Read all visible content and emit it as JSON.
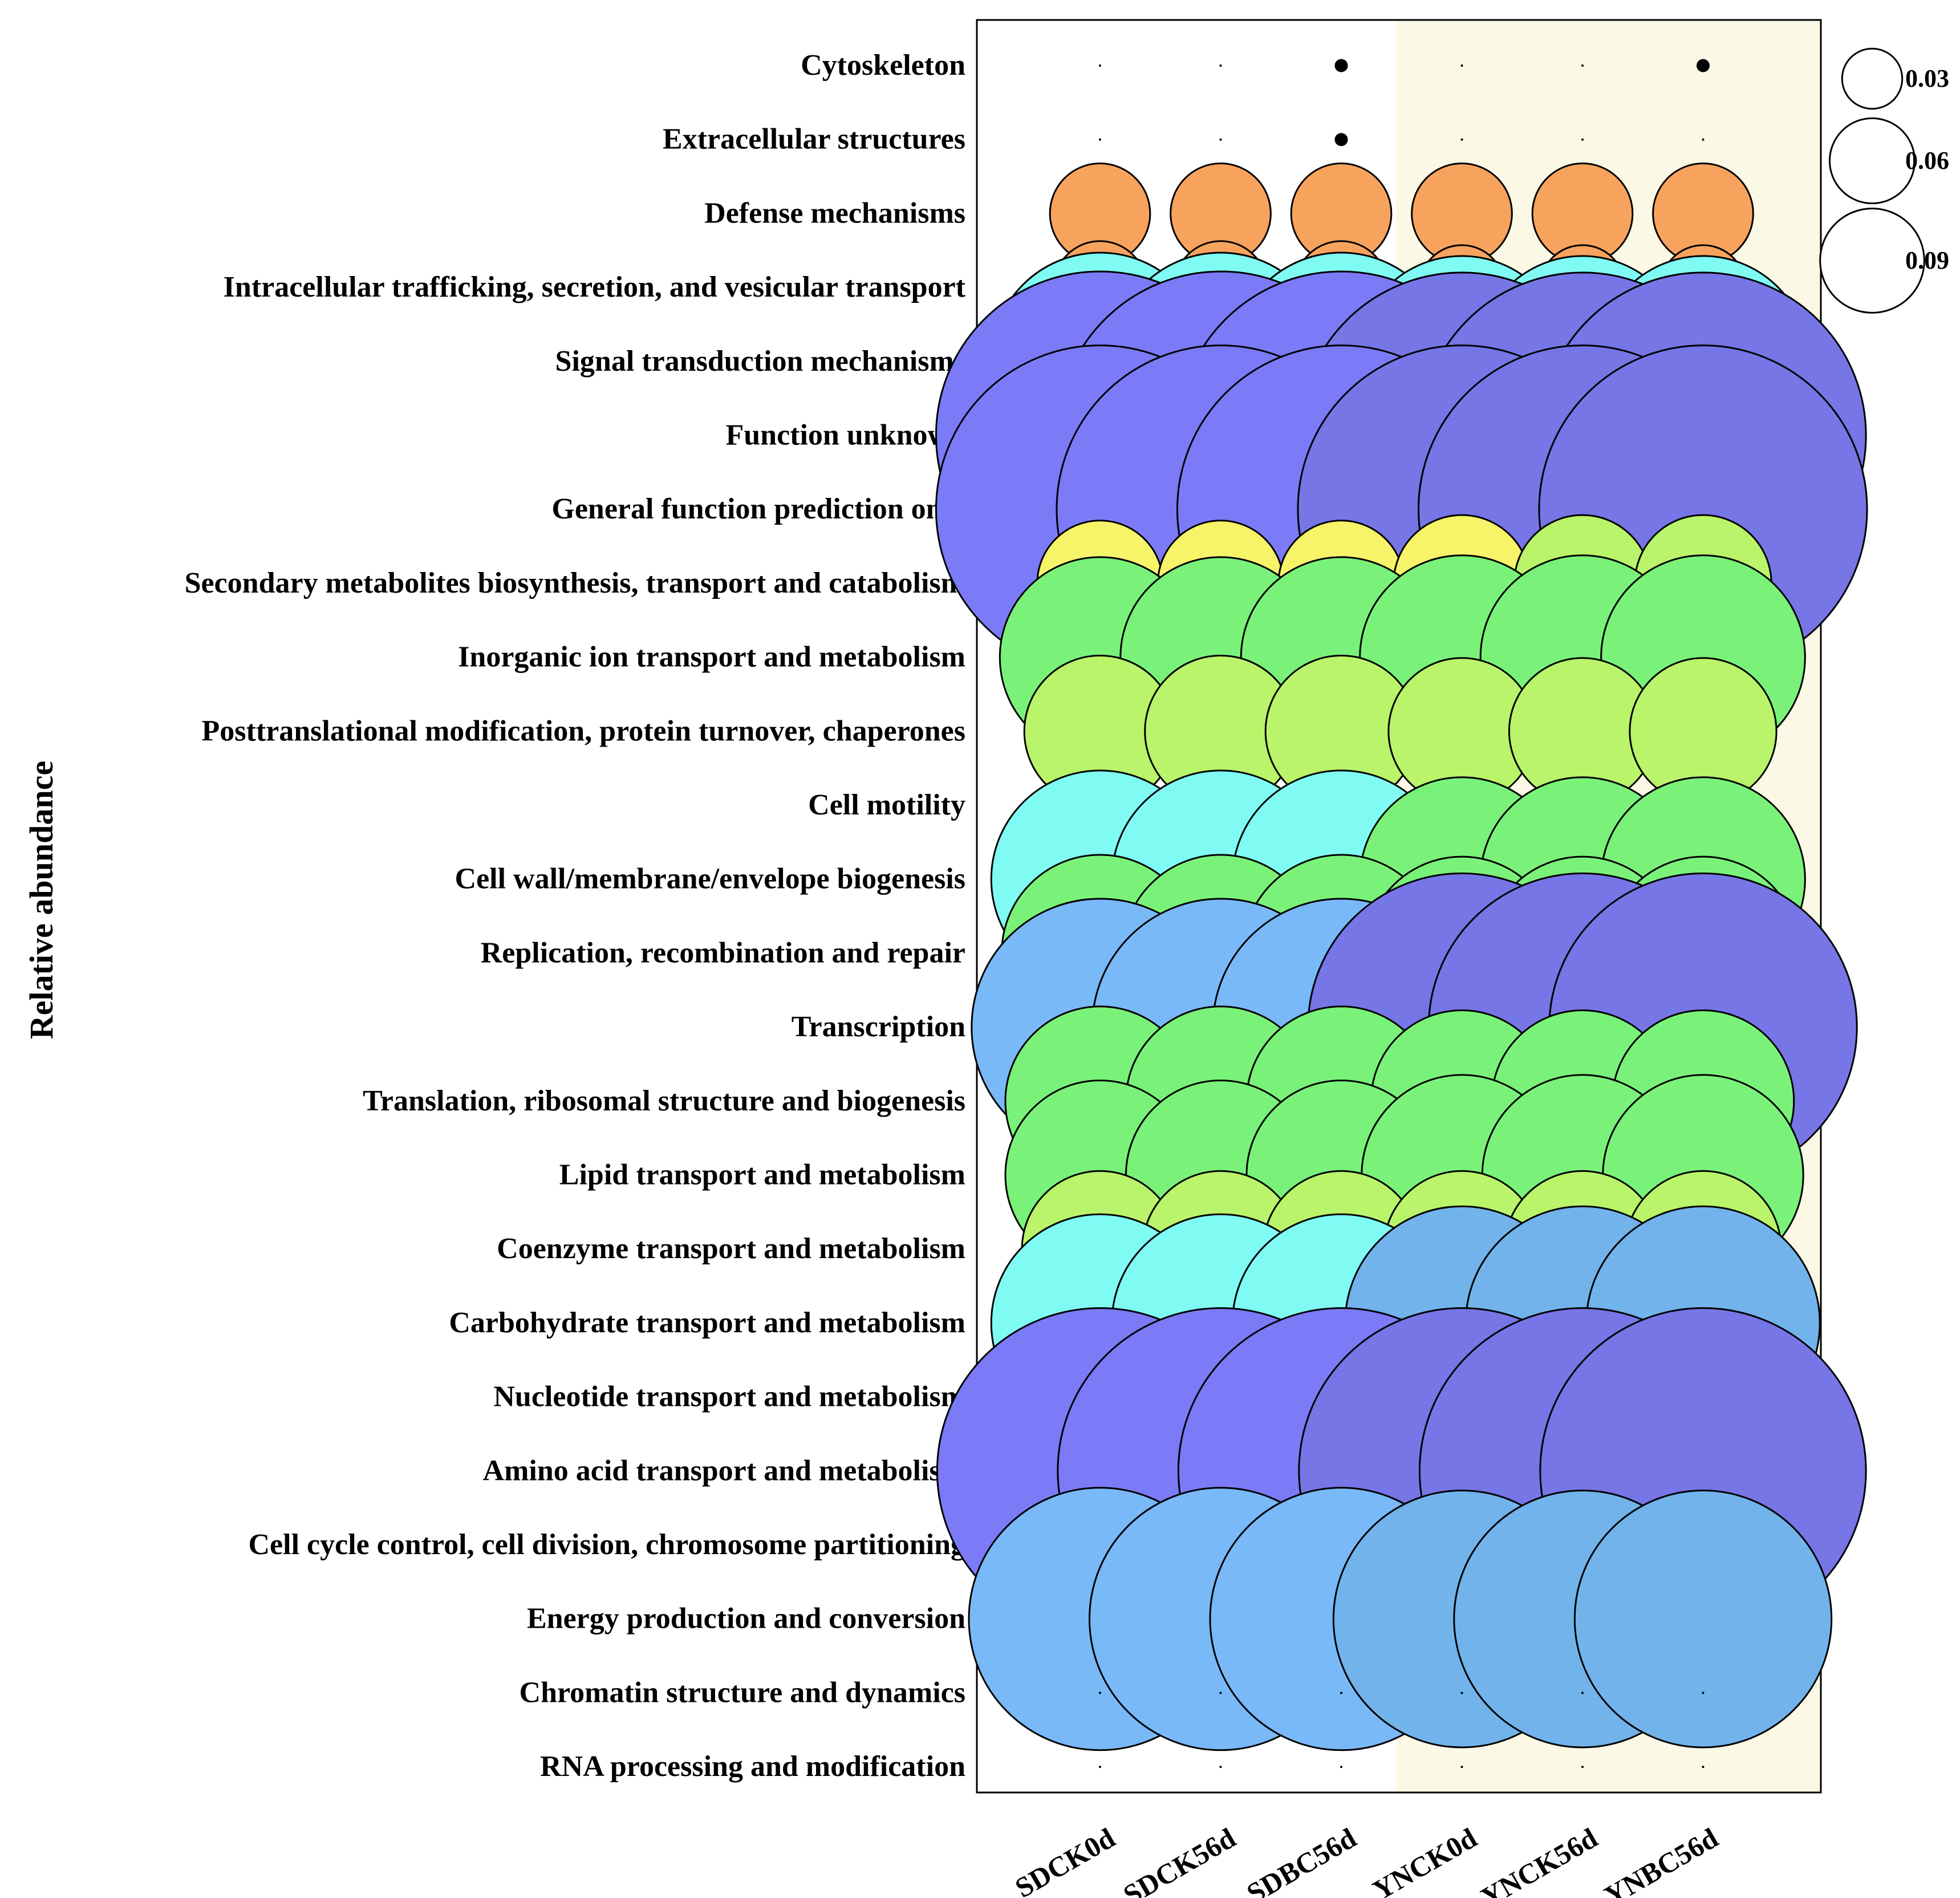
{
  "chart_data": {
    "type": "bubble",
    "ylabel": "Relative abundance",
    "x_categories": [
      "SDCK0d",
      "SDCK56d",
      "SDBC56d",
      "YNCK0d",
      "YNCK56d",
      "YNBC56d"
    ],
    "y_categories": [
      "Cytoskeleton",
      "Extracellular structures",
      "Defense mechanisms",
      "Intracellular trafficking, secretion, and vesicular transport",
      "Signal transduction mechanisms",
      "Function unknown",
      "General function prediction only",
      "Secondary metabolites biosynthesis, transport and catabolism",
      "Inorganic ion transport and metabolism",
      "Posttranslational modification, protein turnover, chaperones",
      "Cell motility",
      "Cell wall/membrane/envelope biogenesis",
      "Replication, recombination and repair",
      "Transcription",
      "Translation, ribosomal structure and biogenesis",
      "Lipid transport and metabolism",
      "Coenzyme transport and metabolism",
      "Carbohydrate transport and metabolism",
      "Nucleotide transport and metabolism",
      "Amino acid transport and metabolism",
      "Cell cycle control, cell division, chromosome partitioning",
      "Energy production and conversion",
      "Chromatin structure and dynamics",
      "RNA processing and modification"
    ],
    "values": [
      [
        0.0,
        0.0,
        0.0001,
        0.0,
        0.0,
        0.0001
      ],
      [
        0.0,
        0.0,
        0.0001,
        0.0,
        0.0,
        0.0
      ],
      [
        0.007,
        0.007,
        0.007,
        0.007,
        0.007,
        0.007
      ],
      [
        0.006,
        0.006,
        0.006,
        0.005,
        0.005,
        0.005
      ],
      [
        0.033,
        0.033,
        0.033,
        0.031,
        0.031,
        0.031
      ],
      [
        0.075,
        0.075,
        0.075,
        0.074,
        0.074,
        0.074
      ],
      [
        0.075,
        0.075,
        0.075,
        0.075,
        0.075,
        0.075
      ],
      [
        0.011,
        0.011,
        0.011,
        0.013,
        0.013,
        0.013
      ],
      [
        0.028,
        0.028,
        0.028,
        0.029,
        0.029,
        0.029
      ],
      [
        0.016,
        0.016,
        0.016,
        0.015,
        0.015,
        0.015
      ],
      [
        0.003,
        0.003,
        0.003,
        0.002,
        0.002,
        0.002
      ],
      [
        0.033,
        0.033,
        0.033,
        0.029,
        0.029,
        0.029
      ],
      [
        0.027,
        0.027,
        0.027,
        0.026,
        0.026,
        0.026
      ],
      [
        0.046,
        0.046,
        0.046,
        0.066,
        0.066,
        0.066
      ],
      [
        0.025,
        0.025,
        0.025,
        0.023,
        0.023,
        0.023
      ],
      [
        0.025,
        0.025,
        0.025,
        0.028,
        0.028,
        0.028
      ],
      [
        0.017,
        0.017,
        0.017,
        0.017,
        0.017,
        0.017
      ],
      [
        0.033,
        0.033,
        0.033,
        0.038,
        0.038,
        0.038
      ],
      [
        0.008,
        0.008,
        0.008,
        0.008,
        0.008,
        0.008
      ],
      [
        0.074,
        0.074,
        0.074,
        0.074,
        0.074,
        0.074
      ],
      [
        0.002,
        0.002,
        0.002,
        0.002,
        0.002,
        0.002
      ],
      [
        0.048,
        0.048,
        0.048,
        0.046,
        0.046,
        0.046
      ],
      [
        0.0,
        0.0,
        0.0,
        0.0,
        0.0,
        0.0
      ],
      [
        0.0,
        0.0,
        0.0,
        0.0,
        0.0,
        0.0
      ]
    ],
    "colors": [
      [
        "#000000",
        "#000000",
        "#000000",
        "#000000",
        "#000000",
        "#000000"
      ],
      [
        "#000000",
        "#000000",
        "#000000",
        "#000000",
        "#000000",
        "#000000"
      ],
      [
        "#F7A35E",
        "#F7A35E",
        "#F7A35E",
        "#F7A35E",
        "#F7A35E",
        "#F7A35E"
      ],
      [
        "#F7A35E",
        "#F7A35E",
        "#F7A35E",
        "#F7A35E",
        "#F7A35E",
        "#F7A35E"
      ],
      [
        "#7FFBF3",
        "#7FFBF3",
        "#7FFBF3",
        "#7FFBF3",
        "#7FFBF3",
        "#7FFBF3"
      ],
      [
        "#7B7BF7",
        "#7B7BF7",
        "#7B7BF7",
        "#7676E6",
        "#7676E6",
        "#7676E6"
      ],
      [
        "#7B7BF7",
        "#7B7BF7",
        "#7B7BF7",
        "#7676E6",
        "#7676E6",
        "#7676E6"
      ],
      [
        "#F8F46A",
        "#F8F46A",
        "#F8F46A",
        "#F8F46A",
        "#B9F46A",
        "#B9F46A"
      ],
      [
        "#7AF27A",
        "#7AF27A",
        "#7AF27A",
        "#7AF27A",
        "#7AF27A",
        "#7AF27A"
      ],
      [
        "#B9F46A",
        "#B9F46A",
        "#B9F46A",
        "#B9F46A",
        "#B9F46A",
        "#B9F46A"
      ],
      [
        "#F7A35E",
        "#F7A35E",
        "#F7A35E",
        "#E48A5C",
        "#E48A5C",
        "#E48A5C"
      ],
      [
        "#7FFBF3",
        "#7FFBF3",
        "#7FFBF3",
        "#7AF27A",
        "#7AF27A",
        "#7AF27A"
      ],
      [
        "#7AF27A",
        "#7AF27A",
        "#7AF27A",
        "#7AF27A",
        "#7AF27A",
        "#7AF27A"
      ],
      [
        "#7AB9F8",
        "#7AB9F8",
        "#7AB9F8",
        "#7676E6",
        "#7676E6",
        "#7676E6"
      ],
      [
        "#7AF27A",
        "#7AF27A",
        "#7AF27A",
        "#7AF27A",
        "#7AF27A",
        "#7AF27A"
      ],
      [
        "#7AF27A",
        "#7AF27A",
        "#7AF27A",
        "#7AF27A",
        "#7AF27A",
        "#7AF27A"
      ],
      [
        "#B9F46A",
        "#B9F46A",
        "#B9F46A",
        "#B9F46A",
        "#B9F46A",
        "#B9F46A"
      ],
      [
        "#7FFBF3",
        "#7FFBF3",
        "#7FFBF3",
        "#72B3EB",
        "#72B3EB",
        "#72B3EB"
      ],
      [
        "#F8F46A",
        "#F8F46A",
        "#F8F46A",
        "#F7A35E",
        "#F7A35E",
        "#F7A35E"
      ],
      [
        "#7B7BF7",
        "#7B7BF7",
        "#7B7BF7",
        "#7676E6",
        "#7676E6",
        "#7676E6"
      ],
      [
        "#E48A5C",
        "#E48A5C",
        "#E48A5C",
        "#E48A5C",
        "#E48A5C",
        "#E48A5C"
      ],
      [
        "#7AB9F8",
        "#7AB9F8",
        "#7AB9F8",
        "#72B3EB",
        "#72B3EB",
        "#72B3EB"
      ],
      [
        "#000000",
        "#000000",
        "#000000",
        "#000000",
        "#000000",
        "#000000"
      ],
      [
        "#000000",
        "#000000",
        "#000000",
        "#000000",
        "#000000",
        "#000000"
      ]
    ],
    "size_legend": {
      "values": [
        0.03,
        0.06,
        0.09
      ],
      "labels": [
        "0.03",
        "0.06",
        "0.09"
      ]
    },
    "shaded_groups": [
      "YNCK0d",
      "YNCK56d",
      "YNBC56d"
    ],
    "shade_color": "#FBF9E6",
    "grid": false,
    "legend_position": "top-right"
  }
}
